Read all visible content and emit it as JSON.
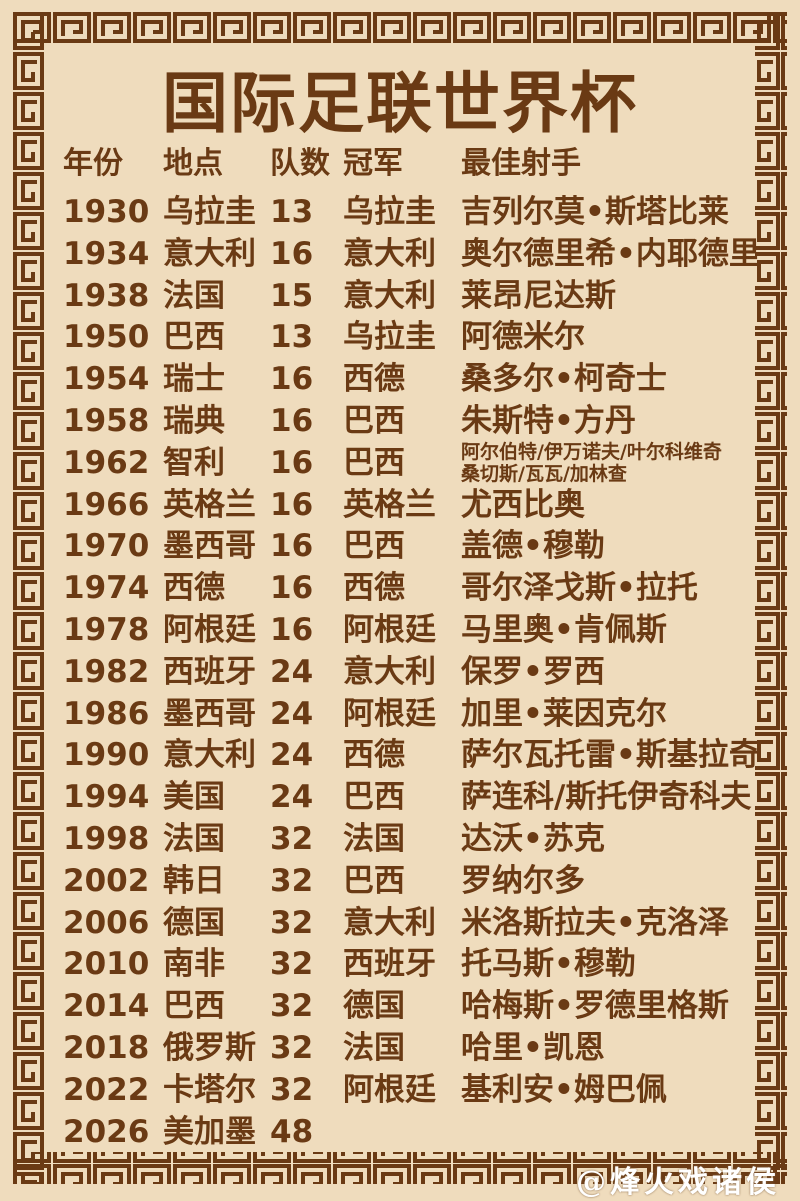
{
  "title": "国际足联世界杯",
  "colors": {
    "background": "#efdcbd",
    "text": "#6a3a14",
    "border": "#6a3a14"
  },
  "headers": {
    "year": "年份",
    "venue": "地点",
    "teams": "队数",
    "champion": "冠军",
    "top_scorer": "最佳射手"
  },
  "rows": [
    {
      "year": "1930",
      "venue": "乌拉圭",
      "teams": "13",
      "champion": "乌拉圭",
      "scorer": "吉列尔莫•斯塔比莱"
    },
    {
      "year": "1934",
      "venue": "意大利",
      "teams": "16",
      "champion": "意大利",
      "scorer": "奥尔德里希•内耶德里"
    },
    {
      "year": "1938",
      "venue": "法国",
      "teams": "15",
      "champion": "意大利",
      "scorer": "莱昂尼达斯"
    },
    {
      "year": "1950",
      "venue": "巴西",
      "teams": "13",
      "champion": "乌拉圭",
      "scorer": "阿德米尔"
    },
    {
      "year": "1954",
      "venue": "瑞士",
      "teams": "16",
      "champion": "西德",
      "scorer": "桑多尔•柯奇士"
    },
    {
      "year": "1958",
      "venue": "瑞典",
      "teams": "16",
      "champion": "巴西",
      "scorer": "朱斯特•方丹"
    },
    {
      "year": "1962",
      "venue": "智利",
      "teams": "16",
      "champion": "巴西",
      "scorer": "阿尔伯特/伊万诺夫/叶尔科维奇",
      "scorer_line2": "桑切斯/瓦瓦/加林查"
    },
    {
      "year": "1966",
      "venue": "英格兰",
      "teams": "16",
      "champion": "英格兰",
      "scorer": "尤西比奥"
    },
    {
      "year": "1970",
      "venue": "墨西哥",
      "teams": "16",
      "champion": "巴西",
      "scorer": "盖德•穆勒"
    },
    {
      "year": "1974",
      "venue": "西德",
      "teams": "16",
      "champion": "西德",
      "scorer": "哥尔泽戈斯•拉托"
    },
    {
      "year": "1978",
      "venue": "阿根廷",
      "teams": "16",
      "champion": "阿根廷",
      "scorer": "马里奥•肯佩斯"
    },
    {
      "year": "1982",
      "venue": "西班牙",
      "teams": "24",
      "champion": "意大利",
      "scorer": "保罗•罗西"
    },
    {
      "year": "1986",
      "venue": "墨西哥",
      "teams": "24",
      "champion": "阿根廷",
      "scorer": "加里•莱因克尔"
    },
    {
      "year": "1990",
      "venue": "意大利",
      "teams": "24",
      "champion": "西德",
      "scorer": "萨尔瓦托雷•斯基拉奇"
    },
    {
      "year": "1994",
      "venue": "美国",
      "teams": "24",
      "champion": "巴西",
      "scorer": "萨连科/斯托伊奇科夫"
    },
    {
      "year": "1998",
      "venue": "法国",
      "teams": "32",
      "champion": "法国",
      "scorer": "达沃•苏克"
    },
    {
      "year": "2002",
      "venue": "韩日",
      "teams": "32",
      "champion": "巴西",
      "scorer": "罗纳尔多"
    },
    {
      "year": "2006",
      "venue": "德国",
      "teams": "32",
      "champion": "意大利",
      "scorer": "米洛斯拉夫•克洛泽"
    },
    {
      "year": "2010",
      "venue": "南非",
      "teams": "32",
      "champion": "西班牙",
      "scorer": "托马斯•穆勒"
    },
    {
      "year": "2014",
      "venue": "巴西",
      "teams": "32",
      "champion": "德国",
      "scorer": "哈梅斯•罗德里格斯"
    },
    {
      "year": "2018",
      "venue": "俄罗斯",
      "teams": "32",
      "champion": "法国",
      "scorer": "哈里•凯恩"
    },
    {
      "year": "2022",
      "venue": "卡塔尔",
      "teams": "32",
      "champion": "阿根廷",
      "scorer": "基利安•姆巴佩"
    },
    {
      "year": "2026",
      "venue": "美加墨",
      "teams": "48",
      "champion": "",
      "scorer": ""
    }
  ],
  "watermark": "@烽火戏诸侯"
}
